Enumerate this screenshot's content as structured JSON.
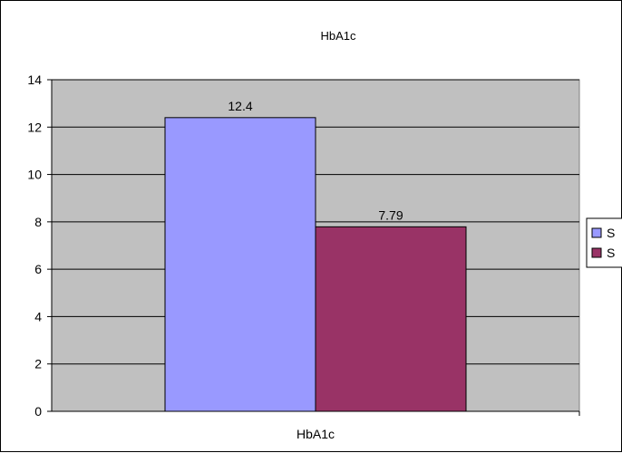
{
  "chart_data": {
    "type": "bar",
    "title": "HbA1c",
    "xlabel": "",
    "ylabel": "",
    "categories": [
      "HbA1c"
    ],
    "series": [
      {
        "name": "S",
        "values": [
          12.4
        ],
        "label": "12.4",
        "color": "#9999ff"
      },
      {
        "name": "S",
        "values": [
          7.79
        ],
        "label": "7.79",
        "color": "#993366"
      }
    ],
    "ylim": [
      0,
      14
    ],
    "yticks": [
      0,
      2,
      4,
      6,
      8,
      10,
      12,
      14
    ],
    "grid": true,
    "legend": "right",
    "plot_background": "#c0c0c0"
  }
}
